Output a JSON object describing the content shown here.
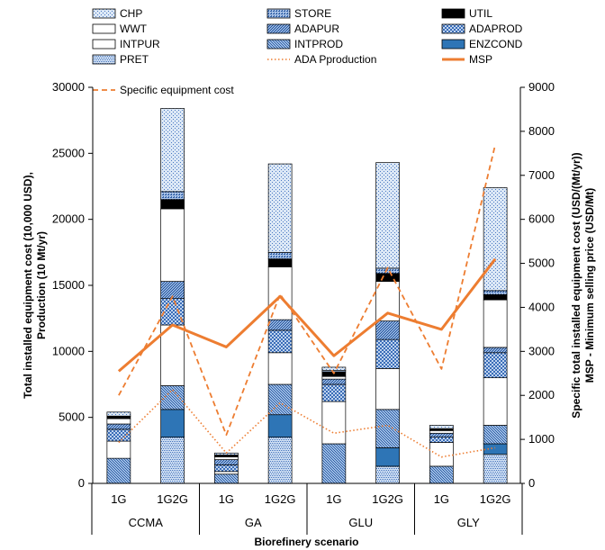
{
  "chart_data": {
    "type": "bar",
    "subtype": "stacked bar with line overlays (secondary axis)",
    "groups": [
      "CCMA",
      "GA",
      "GLU",
      "GLY"
    ],
    "categories": [
      "1G",
      "1G2G",
      "1G",
      "1G2G",
      "1G",
      "1G2G",
      "1G",
      "1G2G"
    ],
    "xlabel": "Biorefinery scenario",
    "ylabel": "Total installed equipment cost (10,000 USD), Production (10 Mt/yr)",
    "y2label": "Specific total installed equipment cost (USD/(Mt/yr)) MSP - Minimum selling price (USD/Mt)",
    "ylim": [
      0,
      30000
    ],
    "y2lim": [
      0,
      9000
    ],
    "yticks": [
      "0",
      "5000",
      "10000",
      "15000",
      "20000",
      "25000",
      "30000"
    ],
    "y2ticks": [
      "0",
      "1000",
      "2000",
      "3000",
      "4000",
      "5000",
      "6000",
      "7000",
      "8000",
      "9000"
    ],
    "grid": false,
    "legend_position": "top",
    "series": [
      {
        "name": "PRET",
        "key": "pret",
        "values": [
          0,
          3500,
          0,
          3500,
          0,
          1300,
          0,
          2200
        ]
      },
      {
        "name": "ENZCOND",
        "key": "enzcond",
        "values": [
          0,
          2100,
          0,
          1700,
          0,
          1400,
          0,
          800
        ]
      },
      {
        "name": "INTPROD",
        "key": "intprod",
        "values": [
          1900,
          1800,
          700,
          2300,
          3000,
          2900,
          1300,
          1400
        ]
      },
      {
        "name": "INTPUR",
        "key": "intpur",
        "values": [
          1300,
          4600,
          200,
          2400,
          3200,
          3100,
          1800,
          3600
        ]
      },
      {
        "name": "ADAPROD",
        "key": "adaprod",
        "values": [
          900,
          2000,
          500,
          1700,
          1300,
          2200,
          400,
          1900
        ]
      },
      {
        "name": "ADAPUR",
        "key": "adapur",
        "values": [
          400,
          1300,
          400,
          800,
          400,
          1400,
          300,
          400
        ]
      },
      {
        "name": "WWT",
        "key": "wwt",
        "values": [
          400,
          5500,
          200,
          4000,
          200,
          3000,
          200,
          3600
        ]
      },
      {
        "name": "UTIL",
        "key": "util",
        "values": [
          150,
          700,
          100,
          600,
          350,
          600,
          100,
          400
        ]
      },
      {
        "name": "STORE",
        "key": "store",
        "values": [
          50,
          600,
          50,
          500,
          100,
          400,
          50,
          300
        ]
      },
      {
        "name": "CHP",
        "key": "chp",
        "values": [
          300,
          6300,
          150,
          6700,
          250,
          8000,
          250,
          7800
        ]
      }
    ],
    "lines": [
      {
        "name": "ADA Pproduction",
        "key": "ada",
        "axis": "left",
        "values": [
          3100,
          7100,
          2300,
          6100,
          3800,
          4400,
          2000,
          2700
        ]
      },
      {
        "name": "MSP",
        "key": "msp",
        "axis": "right",
        "values": [
          2550,
          3600,
          3100,
          4250,
          2900,
          3870,
          3500,
          5100
        ]
      },
      {
        "name": "Specific equipment cost",
        "key": "sec",
        "axis": "right",
        "values": [
          2000,
          4250,
          1100,
          4300,
          2500,
          4900,
          2600,
          7700
        ]
      }
    ],
    "legend": [
      {
        "label": "CHP",
        "key": "chp"
      },
      {
        "label": "STORE",
        "key": "store"
      },
      {
        "label": "UTIL",
        "key": "util"
      },
      {
        "label": "WWT",
        "key": "wwt"
      },
      {
        "label": "ADAPUR",
        "key": "adapur"
      },
      {
        "label": "ADAPROD",
        "key": "adaprod"
      },
      {
        "label": "INTPUR",
        "key": "intpur"
      },
      {
        "label": "INTPROD",
        "key": "intprod"
      },
      {
        "label": "ENZCOND",
        "key": "enzcond"
      },
      {
        "label": "PRET",
        "key": "pret"
      },
      {
        "label": "ADA Pproduction",
        "key": "ada"
      },
      {
        "label": "MSP",
        "key": "msp"
      },
      {
        "label": "Specific equipment cost",
        "key": "sec"
      }
    ],
    "colors": {
      "line_orange": "#ED7D31",
      "enzcond_fill": "#2E75B6",
      "util_fill": "#000000",
      "pattern_blue": "#4472C4",
      "pattern_light": "#D6E4F5"
    }
  }
}
